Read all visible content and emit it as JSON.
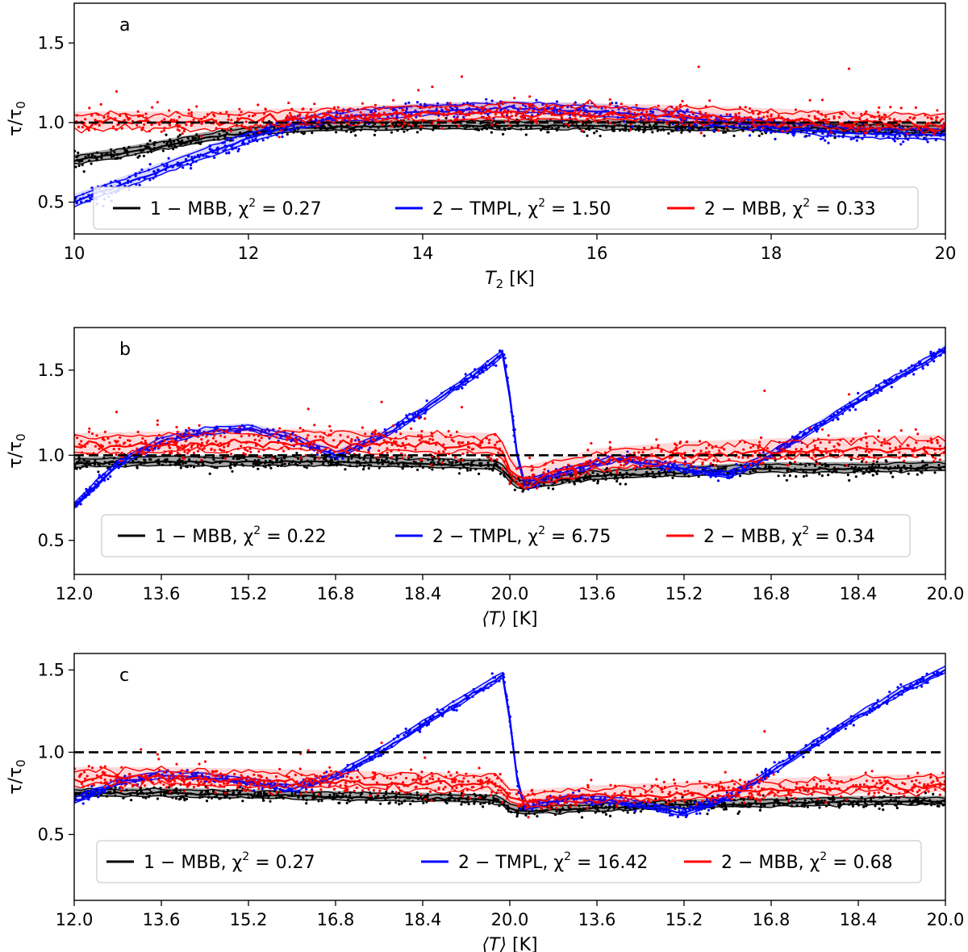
{
  "chart_data": [
    {
      "type": "scatter",
      "panel_label": "a",
      "ylabel": "τ/τ0",
      "ylabel_main": "τ/τ",
      "ylabel_sub": "0",
      "xlabel": "T2 [K]",
      "xlabel_main": "T",
      "xlabel_sub": "2",
      "xlabel_unit": " [K]",
      "xlim": [
        10,
        20
      ],
      "ylim": [
        0.3,
        1.75
      ],
      "x_ticks": [
        10,
        12,
        14,
        16,
        18,
        20
      ],
      "x_tick_labels": [
        "10",
        "12",
        "14",
        "16",
        "18",
        "20"
      ],
      "y_ticks": [
        0.5,
        1.0,
        1.5
      ],
      "y_tick_labels": [
        "0.5",
        "1.0",
        "1.5"
      ],
      "reference_line": 1.0,
      "legend": [
        {
          "name": "1 − MBB, χ2 = 0.27",
          "label": "1 − MBB, χ",
          "sup": "2",
          "value": " = 0.27",
          "color": "#000000"
        },
        {
          "name": "2 − TMPL, χ2 = 1.50",
          "label": "2 − TMPL, χ",
          "sup": "2",
          "value": " = 1.50",
          "color": "#0000ff"
        },
        {
          "name": "2 − MBB, χ2 = 0.33",
          "label": "2 − MBB, χ",
          "sup": "2",
          "value": " = 0.33",
          "color": "#ff0000"
        }
      ],
      "series": [
        {
          "name": "1 − MBB",
          "color": "#000000",
          "x": [
            10.0,
            10.5,
            11.0,
            11.5,
            12.0,
            12.5,
            13.0,
            14.0,
            15.0,
            16.0,
            17.0,
            18.0,
            19.0,
            20.0
          ],
          "y": [
            0.76,
            0.8,
            0.85,
            0.9,
            0.94,
            0.96,
            0.97,
            0.98,
            0.98,
            0.98,
            0.97,
            0.97,
            0.96,
            0.95
          ],
          "spread": 0.04
        },
        {
          "name": "2 − TMPL",
          "color": "#0000ff",
          "x": [
            10.0,
            10.5,
            11.0,
            11.5,
            12.0,
            12.5,
            13.0,
            14.0,
            15.0,
            16.0,
            17.0,
            18.0,
            19.0,
            20.0
          ],
          "y": [
            0.5,
            0.6,
            0.7,
            0.8,
            0.9,
            0.98,
            1.03,
            1.07,
            1.09,
            1.07,
            1.03,
            0.97,
            0.93,
            0.92
          ],
          "spread": 0.05
        },
        {
          "name": "2 − MBB",
          "color": "#ff0000",
          "x": [
            10.0,
            10.5,
            11.0,
            11.5,
            12.0,
            12.5,
            13.0,
            14.0,
            15.0,
            16.0,
            17.0,
            18.0,
            19.0,
            20.0
          ],
          "y": [
            1.0,
            1.0,
            1.0,
            1.0,
            1.01,
            1.02,
            1.03,
            1.05,
            1.06,
            1.05,
            1.04,
            1.02,
            1.0,
            0.99
          ],
          "spread": 0.07
        }
      ]
    },
    {
      "type": "scatter",
      "panel_label": "b",
      "ylabel": "τ/τ0",
      "ylabel_main": "τ/τ",
      "ylabel_sub": "0",
      "xlabel": "⟨T⟩ [K]",
      "xlabel_main": "⟨T⟩",
      "xlabel_sub": "",
      "xlabel_unit": " [K]",
      "xlim": [
        0,
        16
      ],
      "ylim": [
        0.3,
        1.75
      ],
      "x_ticks": [
        0,
        1.6,
        3.2,
        4.8,
        6.4,
        8.0,
        9.6,
        11.2,
        12.8,
        14.4,
        16.0
      ],
      "x_tick_labels": [
        "12.0",
        "13.6",
        "15.2",
        "16.8",
        "18.4",
        "20.0",
        "13.6",
        "15.2",
        "16.8",
        "18.4",
        "20.0"
      ],
      "y_ticks": [
        0.5,
        1.0,
        1.5
      ],
      "y_tick_labels": [
        "0.5",
        "1.0",
        "1.5"
      ],
      "reference_line": 1.0,
      "legend": [
        {
          "name": "1 − MBB, χ2 = 0.22",
          "label": "1 − MBB, χ",
          "sup": "2",
          "value": " = 0.22",
          "color": "#000000"
        },
        {
          "name": "2 − TMPL, χ2 = 6.75",
          "label": "2 − TMPL, χ",
          "sup": "2",
          "value": " = 6.75",
          "color": "#0000ff"
        },
        {
          "name": "2 − MBB, χ2 = 0.34",
          "label": "2 − MBB, χ",
          "sup": "2",
          "value": " = 0.34",
          "color": "#ff0000"
        }
      ],
      "series": [
        {
          "name": "1 − MBB",
          "color": "#000000",
          "x": [
            0,
            1.6,
            3.2,
            4.8,
            6.4,
            7.8,
            8.0,
            8.2,
            9.6,
            11.2,
            12.8,
            14.4,
            16.0
          ],
          "y": [
            0.95,
            0.96,
            0.96,
            0.96,
            0.95,
            0.94,
            0.86,
            0.82,
            0.88,
            0.9,
            0.92,
            0.92,
            0.93
          ],
          "spread": 0.04
        },
        {
          "name": "2 − TMPL",
          "color": "#0000ff",
          "x": [
            0,
            0.8,
            1.6,
            2.4,
            3.2,
            4.0,
            4.8,
            5.6,
            6.4,
            7.2,
            7.9,
            8.2,
            9.0,
            10.0,
            11.2,
            12.0,
            12.8,
            13.6,
            14.4,
            15.2,
            16.0
          ],
          "y": [
            0.7,
            0.95,
            1.08,
            1.14,
            1.16,
            1.1,
            1.0,
            1.1,
            1.26,
            1.44,
            1.6,
            0.83,
            0.9,
            0.98,
            0.92,
            0.88,
            1.0,
            1.16,
            1.32,
            1.47,
            1.62
          ],
          "spread": 0.03
        },
        {
          "name": "2 − MBB",
          "color": "#ff0000",
          "x": [
            0,
            1.6,
            3.2,
            4.8,
            6.4,
            7.8,
            8.0,
            8.2,
            9.6,
            11.2,
            12.8,
            14.4,
            16.0
          ],
          "y": [
            1.05,
            1.06,
            1.08,
            1.07,
            1.06,
            1.05,
            0.92,
            0.85,
            0.96,
            1.0,
            1.02,
            1.03,
            1.04
          ],
          "spread": 0.08
        }
      ]
    },
    {
      "type": "scatter",
      "panel_label": "c",
      "ylabel": "τ/τ0",
      "ylabel_main": "τ/τ",
      "ylabel_sub": "0",
      "xlabel": "⟨T⟩ [K]",
      "xlabel_main": "⟨T⟩",
      "xlabel_sub": "",
      "xlabel_unit": " [K]",
      "xlim": [
        0,
        16
      ],
      "ylim": [
        0.1,
        1.6
      ],
      "x_ticks": [
        0,
        1.6,
        3.2,
        4.8,
        6.4,
        8.0,
        9.6,
        11.2,
        12.8,
        14.4,
        16.0
      ],
      "x_tick_labels": [
        "12.0",
        "13.6",
        "15.2",
        "16.8",
        "18.4",
        "20.0",
        "13.6",
        "15.2",
        "16.8",
        "18.4",
        "20.0"
      ],
      "y_ticks": [
        0.5,
        1.0,
        1.5
      ],
      "y_tick_labels": [
        "0.5",
        "1.0",
        "1.5"
      ],
      "reference_line": 1.0,
      "legend": [
        {
          "name": "1 − MBB, χ2 = 0.27",
          "label": "1 − MBB, χ",
          "sup": "2",
          "value": " = 0.27",
          "color": "#000000"
        },
        {
          "name": "2 − TMPL, χ2 = 16.42",
          "label": "2 − TMPL, χ",
          "sup": "2",
          "value": " = 16.42",
          "color": "#0000ff"
        },
        {
          "name": "2 − MBB, χ2 = 0.68",
          "label": "2 − MBB, χ",
          "sup": "2",
          "value": " = 0.68",
          "color": "#ff0000"
        }
      ],
      "series": [
        {
          "name": "1 − MBB",
          "color": "#000000",
          "x": [
            0,
            1.6,
            3.2,
            4.8,
            6.4,
            7.8,
            8.0,
            8.2,
            9.6,
            11.2,
            12.8,
            14.4,
            16.0
          ],
          "y": [
            0.75,
            0.75,
            0.74,
            0.73,
            0.72,
            0.71,
            0.66,
            0.64,
            0.66,
            0.68,
            0.69,
            0.7,
            0.7
          ],
          "spread": 0.035
        },
        {
          "name": "2 − TMPL",
          "color": "#0000ff",
          "x": [
            0,
            0.8,
            1.6,
            2.4,
            3.2,
            4.0,
            4.8,
            5.6,
            6.4,
            7.2,
            7.9,
            8.2,
            9.0,
            10.0,
            11.2,
            12.0,
            12.8,
            13.6,
            14.4,
            15.2,
            16.0
          ],
          "y": [
            0.7,
            0.82,
            0.86,
            0.85,
            0.82,
            0.78,
            0.85,
            1.0,
            1.17,
            1.33,
            1.47,
            0.66,
            0.72,
            0.7,
            0.63,
            0.72,
            0.88,
            1.05,
            1.22,
            1.37,
            1.5
          ],
          "spread": 0.03
        },
        {
          "name": "2 − MBB",
          "color": "#ff0000",
          "x": [
            0,
            1.6,
            3.2,
            4.8,
            6.4,
            7.8,
            8.0,
            8.2,
            9.6,
            11.2,
            12.8,
            14.4,
            16.0
          ],
          "y": [
            0.84,
            0.84,
            0.83,
            0.82,
            0.81,
            0.8,
            0.72,
            0.7,
            0.73,
            0.75,
            0.77,
            0.79,
            0.8
          ],
          "spread": 0.07
        }
      ]
    }
  ]
}
